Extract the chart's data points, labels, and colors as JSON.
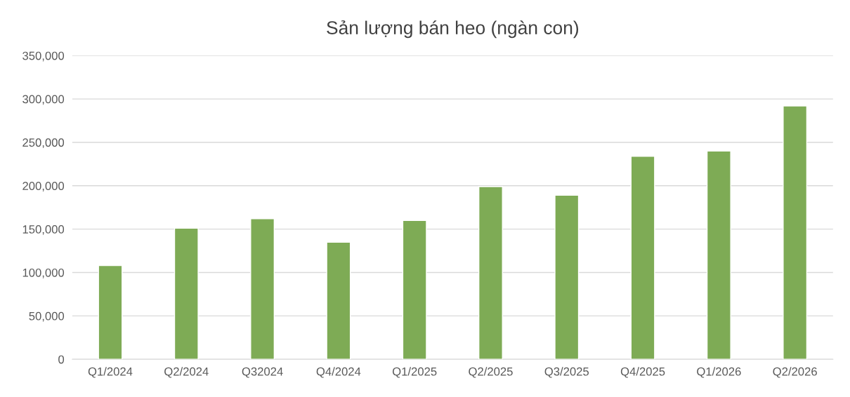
{
  "chart_data": {
    "type": "bar",
    "title": "Sản lượng bán heo (ngàn con)",
    "categories": [
      "Q1/2024",
      "Q2/2024",
      "Q32024",
      "Q4/2024",
      "Q1/2025",
      "Q2/2025",
      "Q3/2025",
      "Q4/2025",
      "Q1/2026",
      "Q2/2026"
    ],
    "values": [
      108000,
      151000,
      162000,
      135000,
      160000,
      199000,
      189000,
      234000,
      240000,
      292000
    ],
    "color": "#7eab55",
    "ylim": [
      0,
      350000
    ],
    "yticks": [
      {
        "value": 0,
        "label": "0"
      },
      {
        "value": 50000,
        "label": "50,000"
      },
      {
        "value": 100000,
        "label": "100,000"
      },
      {
        "value": 150000,
        "label": "150,000"
      },
      {
        "value": 200000,
        "label": "200,000"
      },
      {
        "value": 250000,
        "label": "250,000"
      },
      {
        "value": 300000,
        "label": "300,000"
      },
      {
        "value": 350000,
        "label": "350,000"
      }
    ],
    "grid": "y",
    "legend": false
  }
}
